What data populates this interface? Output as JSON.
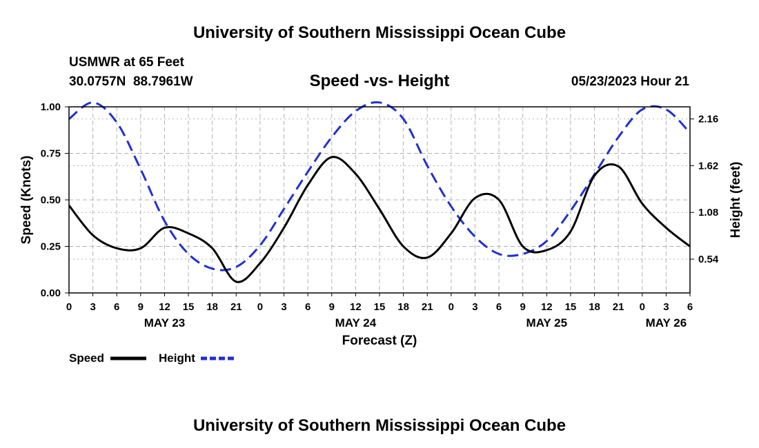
{
  "page_title": "University of Southern Mississippi Ocean Cube",
  "station": {
    "name": "USMWR at 65 Feet",
    "coords": "30.0757N  88.7961W"
  },
  "timestamp": "05/23/2023 Hour 21",
  "footer_title": "University of Southern Mississippi Ocean Cube",
  "colors": {
    "speed": "#000000",
    "height": "#1f2fd6",
    "grid": "#b0b0b0"
  },
  "chart_data": {
    "type": "line",
    "title": "Speed -vs- Height",
    "xlabel": "Forecast (Z)",
    "ylabel_left": "Speed (Knots)",
    "ylabel_right": "Height (feet)",
    "x_unit": "hours from 00Z May 23",
    "xlim": [
      0,
      78
    ],
    "ylim_left": [
      0,
      1
    ],
    "ylim_right": [
      0.15,
      2.3
    ],
    "left_ticks": [
      "0.00",
      "0.25",
      "0.50",
      "0.75",
      "1.00"
    ],
    "right_ticks": [
      "0.54",
      "1.08",
      "1.62",
      "2.16"
    ],
    "x_tick_labels": [
      "0",
      "3",
      "6",
      "9",
      "12",
      "15",
      "18",
      "21",
      "0",
      "3",
      "6",
      "9",
      "12",
      "15",
      "18",
      "21",
      "0",
      "3",
      "6",
      "9",
      "12",
      "15",
      "18",
      "21",
      "0",
      "3",
      "6"
    ],
    "day_labels": [
      {
        "label": "MAY 23",
        "hour": 12
      },
      {
        "label": "MAY 24",
        "hour": 36
      },
      {
        "label": "MAY 25",
        "hour": 60
      },
      {
        "label": "MAY 26",
        "hour": 75
      }
    ],
    "legend": [
      {
        "label": "Speed",
        "series": "speed"
      },
      {
        "label": "Height",
        "series": "height"
      }
    ],
    "series": [
      {
        "name": "Speed",
        "axis": "left",
        "style": "solid",
        "x": [
          0,
          3,
          6,
          9,
          12,
          15,
          18,
          21,
          24,
          27,
          30,
          33,
          36,
          39,
          42,
          45,
          48,
          51,
          54,
          57,
          60,
          63,
          66,
          69,
          72,
          75,
          78
        ],
        "values": [
          0.47,
          0.31,
          0.24,
          0.24,
          0.35,
          0.32,
          0.24,
          0.06,
          0.16,
          0.35,
          0.58,
          0.73,
          0.64,
          0.45,
          0.25,
          0.19,
          0.32,
          0.51,
          0.5,
          0.25,
          0.23,
          0.33,
          0.63,
          0.68,
          0.48,
          0.35,
          0.25
        ]
      },
      {
        "name": "Height",
        "axis": "right",
        "style": "dashed",
        "x": [
          0,
          3,
          6,
          9,
          12,
          15,
          18,
          21,
          24,
          27,
          30,
          33,
          36,
          39,
          42,
          45,
          48,
          51,
          54,
          57,
          60,
          63,
          66,
          69,
          72,
          75,
          78
        ],
        "values": [
          2.16,
          2.35,
          2.12,
          1.58,
          0.98,
          0.6,
          0.43,
          0.45,
          0.7,
          1.12,
          1.55,
          1.95,
          2.25,
          2.35,
          2.16,
          1.62,
          1.15,
          0.8,
          0.6,
          0.6,
          0.75,
          1.1,
          1.52,
          1.95,
          2.27,
          2.27,
          2.0
        ]
      }
    ]
  }
}
